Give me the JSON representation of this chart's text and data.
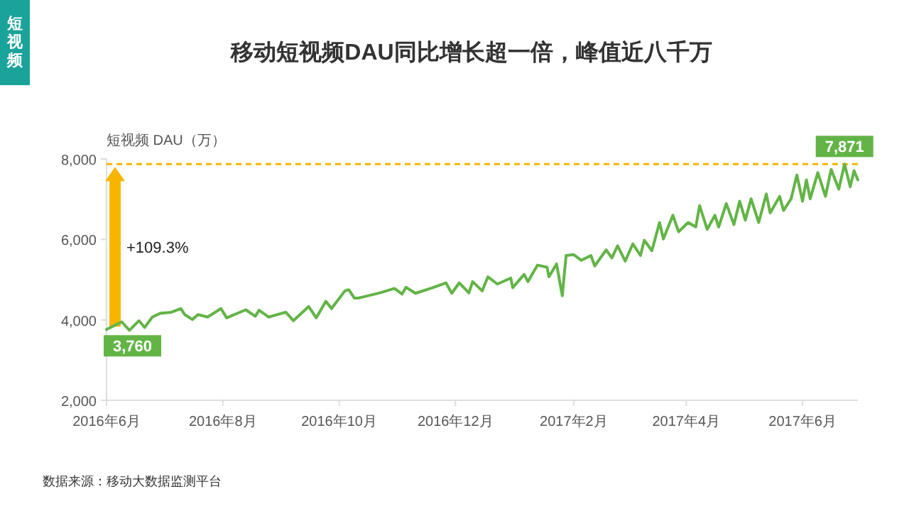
{
  "chart_data": {
    "type": "line",
    "title": "移动短视频DAU同比增长超一倍，峰值近八千万",
    "ylabel": "短视频 DAU（万）",
    "annotations": [
      "短视频",
      "+109.3%",
      "数据来源：移动大数据监测平台"
    ],
    "xlim": [
      "2016-06-01",
      "2017-06-30"
    ],
    "xticks": [
      {
        "value": "2016-06-01",
        "label": "2016年6月"
      },
      {
        "value": "2016-08-01",
        "label": "2016年8月"
      },
      {
        "value": "2016-10-01",
        "label": "2016年10月"
      },
      {
        "value": "2016-12-01",
        "label": "2016年12月"
      },
      {
        "value": "2017-02-01",
        "label": "2017年2月"
      },
      {
        "value": "2017-04-01",
        "label": "2017年4月"
      },
      {
        "value": "2017-06-01",
        "label": "2017年6月"
      }
    ],
    "ylim": [
      2000,
      8000
    ],
    "yticks": [
      {
        "value": 2000,
        "label": "2,000"
      },
      {
        "value": 4000,
        "label": "4,000"
      },
      {
        "value": 6000,
        "label": "6,000"
      },
      {
        "value": 8000,
        "label": "8,000"
      }
    ],
    "ref_lines": [
      {
        "axis": "y",
        "value": 7871,
        "label": null,
        "color": "#f8b500",
        "line_style": "dashed"
      }
    ],
    "series": [
      {
        "color": "#62b446",
        "x": [
          "2016-06-01",
          "2016-06-09",
          "2016-06-13",
          "2016-06-18",
          "2016-06-21",
          "2016-06-25",
          "2016-06-29",
          "2016-07-05",
          "2016-07-10",
          "2016-07-12",
          "2016-07-16",
          "2016-07-19",
          "2016-07-24",
          "2016-07-31",
          "2016-08-03",
          "2016-08-13",
          "2016-08-18",
          "2016-08-20",
          "2016-08-25",
          "2016-09-03",
          "2016-09-07",
          "2016-09-15",
          "2016-09-19",
          "2016-09-24",
          "2016-09-27",
          "2016-10-04",
          "2016-10-06",
          "2016-10-09",
          "2016-10-11",
          "2016-10-23",
          "2016-10-30",
          "2016-11-03",
          "2016-11-05",
          "2016-11-10",
          "2016-11-19",
          "2016-11-26",
          "2016-11-29",
          "2016-12-03",
          "2016-12-08",
          "2016-12-10",
          "2016-12-15",
          "2016-12-18",
          "2016-12-23",
          "2016-12-30",
          "2016-12-31",
          "2017-01-06",
          "2017-01-08",
          "2017-01-13",
          "2017-01-18",
          "2017-01-19",
          "2017-01-23",
          "2017-01-26",
          "2017-01-28",
          "2017-02-01",
          "2017-02-05",
          "2017-02-10",
          "2017-02-12",
          "2017-02-18",
          "2017-02-21",
          "2017-02-24",
          "2017-02-28",
          "2017-03-04",
          "2017-03-08",
          "2017-03-10",
          "2017-03-14",
          "2017-03-18",
          "2017-03-20",
          "2017-03-25",
          "2017-03-28",
          "2017-04-02",
          "2017-04-06",
          "2017-04-08",
          "2017-04-12",
          "2017-04-16",
          "2017-04-18",
          "2017-04-22",
          "2017-04-26",
          "2017-04-29",
          "2017-05-02",
          "2017-05-05",
          "2017-05-09",
          "2017-05-13",
          "2017-05-15",
          "2017-05-20",
          "2017-05-22",
          "2017-05-26",
          "2017-05-29",
          "2017-06-01",
          "2017-06-03",
          "2017-06-05",
          "2017-06-09",
          "2017-06-13",
          "2017-06-16",
          "2017-06-20",
          "2017-06-23",
          "2017-06-26",
          "2017-06-28",
          "2017-06-30"
        ],
        "values": [
          3760,
          3950,
          3740,
          3980,
          3810,
          4070,
          4160,
          4190,
          4280,
          4130,
          4010,
          4130,
          4070,
          4280,
          4050,
          4250,
          4090,
          4240,
          4070,
          4190,
          3980,
          4330,
          4050,
          4460,
          4280,
          4720,
          4750,
          4540,
          4540,
          4680,
          4780,
          4640,
          4810,
          4660,
          4800,
          4920,
          4660,
          4920,
          4670,
          4950,
          4720,
          5070,
          4890,
          5040,
          4800,
          5130,
          4950,
          5360,
          5310,
          5070,
          5390,
          4600,
          5600,
          5620,
          5480,
          5600,
          5340,
          5740,
          5540,
          5840,
          5460,
          5890,
          5600,
          5980,
          5720,
          6420,
          6010,
          6600,
          6190,
          6420,
          6310,
          6840,
          6250,
          6600,
          6310,
          6890,
          6370,
          6950,
          6480,
          7010,
          6420,
          7130,
          6660,
          7070,
          6720,
          7010,
          7600,
          6950,
          7480,
          7010,
          7660,
          7070,
          7740,
          7250,
          7871,
          7310,
          7710,
          7480
        ],
        "value_labels": [
          "3,760",
          null,
          null,
          null,
          null,
          null,
          null,
          null,
          null,
          null,
          null,
          null,
          null,
          null,
          null,
          null,
          null,
          null,
          null,
          null,
          null,
          null,
          null,
          null,
          null,
          null,
          null,
          null,
          null,
          null,
          null,
          null,
          null,
          null,
          null,
          null,
          null,
          null,
          null,
          null,
          null,
          null,
          null,
          null,
          null,
          null,
          null,
          null,
          null,
          null,
          null,
          null,
          null,
          null,
          null,
          null,
          null,
          null,
          null,
          null,
          null,
          null,
          null,
          null,
          null,
          null,
          null,
          null,
          null,
          null,
          null,
          null,
          null,
          null,
          null,
          null,
          null,
          null,
          null,
          null,
          null,
          null,
          null,
          null,
          null,
          null,
          null,
          null,
          null,
          null,
          null,
          null,
          null,
          null,
          "7,871",
          null,
          null,
          null
        ]
      }
    ]
  }
}
